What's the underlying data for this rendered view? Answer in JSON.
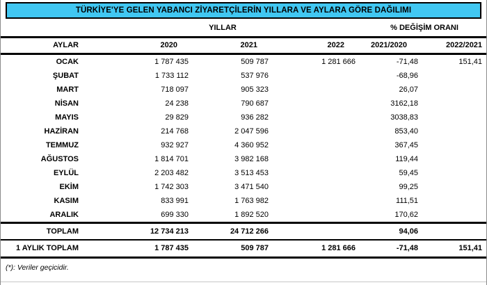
{
  "title": "TÜRKİYE'YE GELEN YABANCI ZİYARETÇİLERİN YILLARA VE AYLARA GÖRE DAĞILIMI",
  "colors": {
    "title_bg": "#41c7f2",
    "border": "#000000"
  },
  "table": {
    "group_headers": {
      "years": "YILLAR",
      "change": "% DEĞİŞİM ORANI"
    },
    "columns": [
      "AYLAR",
      "2020",
      "2021",
      "2022",
      "2021/2020",
      "2022/2021"
    ],
    "rows": [
      [
        "OCAK",
        "1 787 435",
        "509 787",
        "1 281 666",
        "-71,48",
        "151,41"
      ],
      [
        "ŞUBAT",
        "1 733 112",
        "537 976",
        "",
        "-68,96",
        ""
      ],
      [
        "MART",
        "718 097",
        "905 323",
        "",
        "26,07",
        ""
      ],
      [
        "NİSAN",
        "24 238",
        "790 687",
        "",
        "3162,18",
        ""
      ],
      [
        "MAYIS",
        "29 829",
        "936 282",
        "",
        "3038,83",
        ""
      ],
      [
        "HAZİRAN",
        "214 768",
        "2 047 596",
        "",
        "853,40",
        ""
      ],
      [
        "TEMMUZ",
        "932 927",
        "4 360 952",
        "",
        "367,45",
        ""
      ],
      [
        "AĞUSTOS",
        "1 814 701",
        "3 982 168",
        "",
        "119,44",
        ""
      ],
      [
        "EYLÜL",
        "2 203 482",
        "3 513 453",
        "",
        "59,45",
        ""
      ],
      [
        "EKİM",
        "1 742 303",
        "3 471 540",
        "",
        "99,25",
        ""
      ],
      [
        "KASIM",
        "833 991",
        "1 763 982",
        "",
        "111,51",
        ""
      ],
      [
        "ARALIK",
        "699 330",
        "1 892 520",
        "",
        "170,62",
        ""
      ]
    ],
    "total_row": [
      "TOPLAM",
      "12 734 213",
      "24 712 266",
      "",
      "94,06",
      ""
    ],
    "monthly_total_row": [
      "1 AYLIK TOPLAM",
      "1 787 435",
      "509 787",
      "1 281 666",
      "-71,48",
      "151,41"
    ]
  },
  "footnote": "(*): Veriler geçicidir."
}
